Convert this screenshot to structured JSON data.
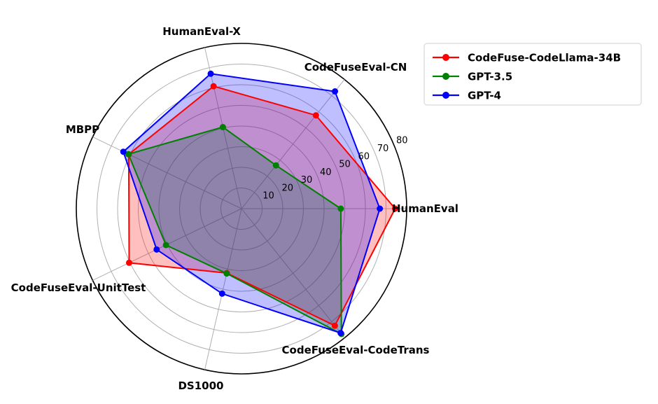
{
  "chart_data": {
    "type": "radar",
    "categories": [
      "HumanEval",
      "CodeFuseEval-CN",
      "HumanEval-X",
      "MBPP",
      "CodeFuseEval-UnitTest",
      "DS1000",
      "CodeFuseEval-CodeTrans"
    ],
    "series": [
      {
        "name": "CodeFuse-CodeLlama-34B",
        "color": "#ff0000",
        "values": [
          74.4,
          57.8,
          60.8,
          60.6,
          60.4,
          32.0,
          72.5
        ]
      },
      {
        "name": "GPT-3.5",
        "color": "#008000",
        "values": [
          48.1,
          26.8,
          40.5,
          60.8,
          40.6,
          32.2,
          77.6
        ]
      },
      {
        "name": "GPT-4",
        "color": "#0000ff",
        "values": [
          67.0,
          72.6,
          67.0,
          63.5,
          45.6,
          42.2,
          77.0
        ]
      }
    ],
    "rlim": [
      0,
      80
    ],
    "rticks": [
      "10",
      "20",
      "30",
      "40",
      "50",
      "60",
      "70",
      "80"
    ],
    "grid": true,
    "legend": "top-right"
  }
}
